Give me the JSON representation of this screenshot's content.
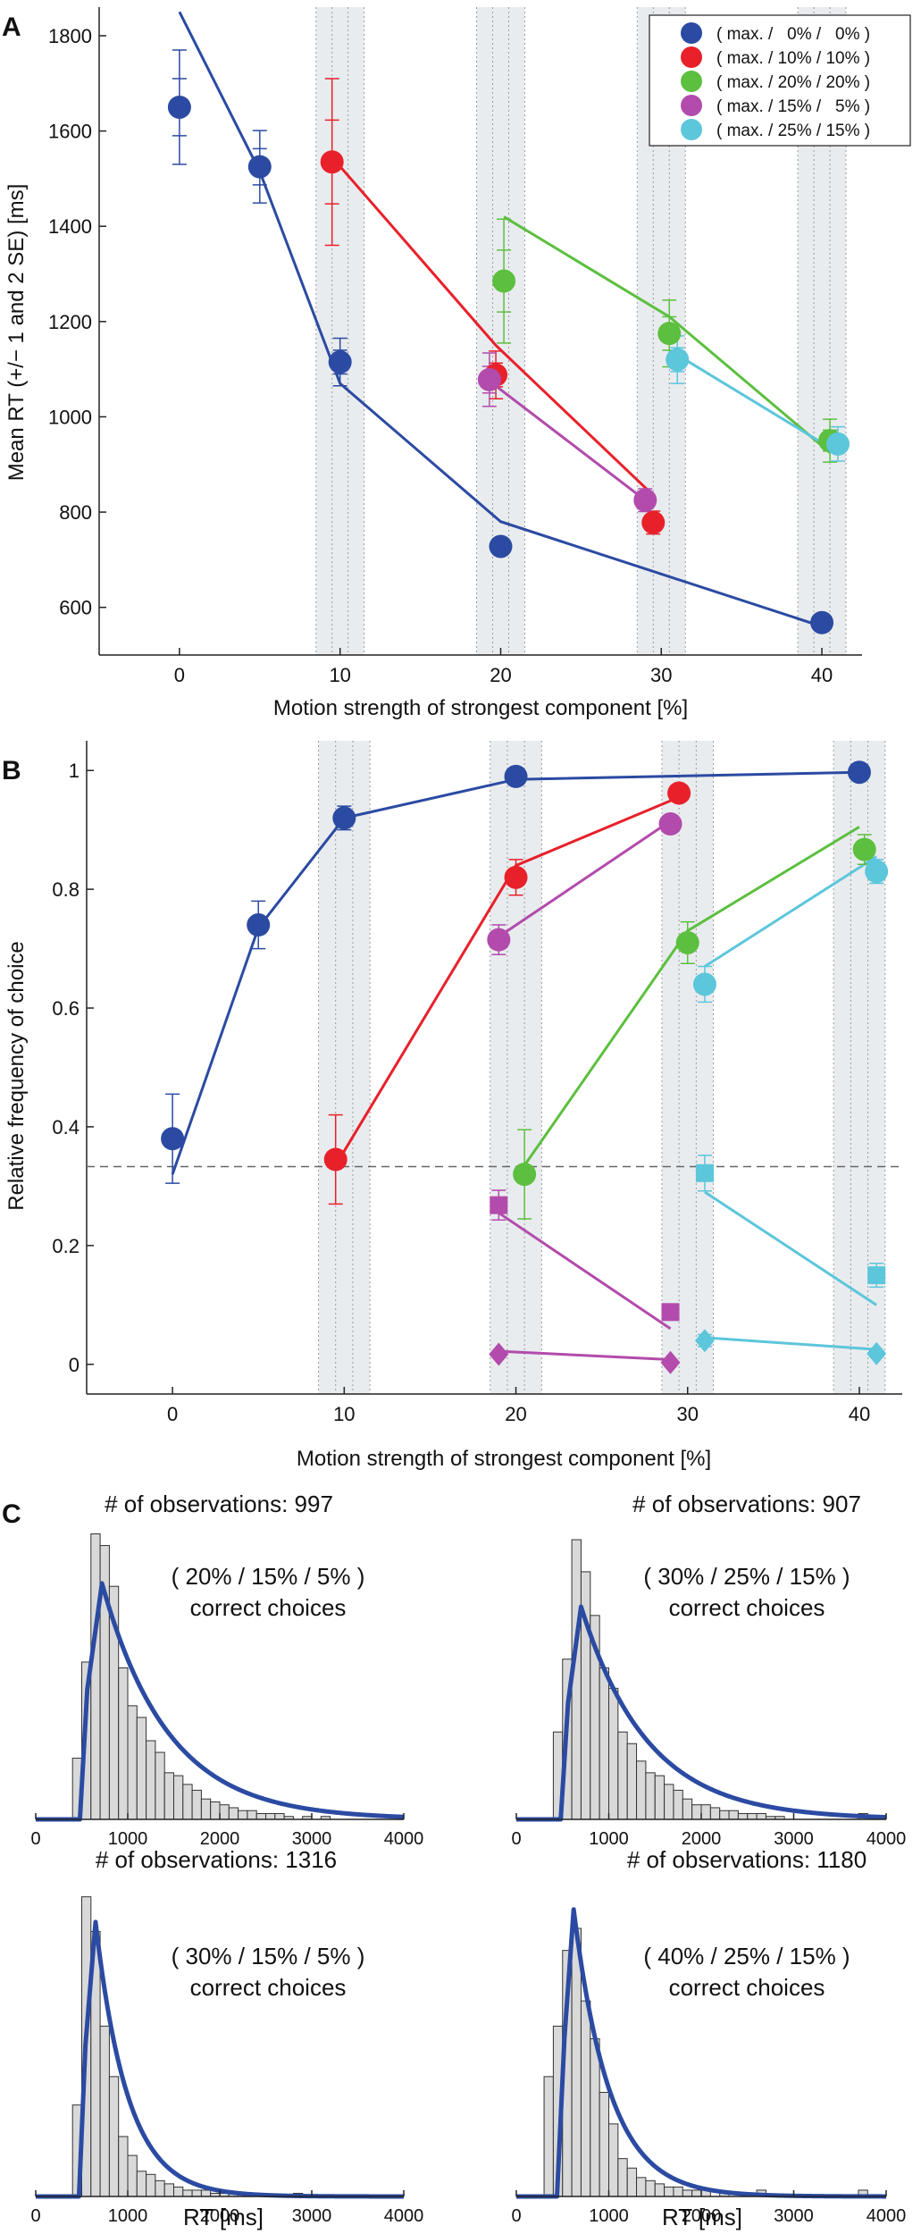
{
  "panel_letters": [
    "A",
    "B",
    "C"
  ],
  "legend_entries": [
    "( max. /   0% /   0% )",
    "( max. / 10% / 10% )",
    "( max. / 20% / 20% )",
    "( max. / 15% /   5% )",
    "( max. / 25% / 15% )"
  ],
  "colors": {
    "blue": "#2b4aa2",
    "red": "#e8202a",
    "green": "#5cbf3f",
    "magenta": "#b24bab",
    "cyan": "#5cc6db",
    "band": "#e9ecef",
    "hist_fill": "#d9d9d9",
    "fit_line": "#2b4aa2"
  },
  "chart_data": [
    {
      "id": "A",
      "type": "scatter",
      "xlabel": "Motion strength of strongest component [%]",
      "ylabel": "Mean RT (+/− 1 and 2 SE) [ms]",
      "xlim": [
        -5,
        42.5
      ],
      "ylim": [
        500,
        1860
      ],
      "xticks": [
        0,
        10,
        20,
        30,
        40
      ],
      "yticks": [
        600,
        800,
        1000,
        1200,
        1400,
        1600,
        1800
      ],
      "shaded_bands": [
        [
          8.5,
          11.5
        ],
        [
          18.5,
          21.5
        ],
        [
          28.5,
          31.5
        ],
        [
          38.5,
          41.5
        ]
      ],
      "legend_position": "top-right",
      "series": [
        {
          "color": "blue",
          "points": [
            {
              "x": 0,
              "y": 1650,
              "se1": 60,
              "se2": 120
            },
            {
              "x": 5,
              "y": 1525,
              "se1": 38,
              "se2": 76
            },
            {
              "x": 10,
              "y": 1115,
              "se1": 25,
              "se2": 50
            },
            {
              "x": 20,
              "y": 728,
              "se1": 8,
              "se2": 16
            },
            {
              "x": 40,
              "y": 568,
              "se1": 6,
              "se2": 12
            }
          ],
          "fit": [
            [
              0,
              1850
            ],
            [
              5,
              1515
            ],
            [
              10,
              1070
            ],
            [
              20,
              780
            ],
            [
              40,
              560
            ]
          ]
        },
        {
          "color": "red",
          "points": [
            {
              "x": 9.5,
              "y": 1535,
              "se1": 88,
              "se2": 175
            },
            {
              "x": 19.7,
              "y": 1088,
              "se1": 25,
              "se2": 50
            },
            {
              "x": 29.5,
              "y": 778,
              "se1": 12,
              "se2": 24
            }
          ],
          "fit": [
            [
              9.5,
              1545
            ],
            [
              19.7,
              1150
            ],
            [
              29.2,
              845
            ]
          ]
        },
        {
          "color": "green",
          "points": [
            {
              "x": 20.2,
              "y": 1285,
              "se1": 65,
              "se2": 130
            },
            {
              "x": 30.5,
              "y": 1175,
              "se1": 35,
              "se2": 70
            },
            {
              "x": 40.5,
              "y": 950,
              "se1": 22,
              "se2": 45
            }
          ],
          "fit": [
            [
              20.2,
              1420
            ],
            [
              30.5,
              1210
            ],
            [
              40.5,
              925
            ]
          ]
        },
        {
          "color": "magenta",
          "points": [
            {
              "x": 19.3,
              "y": 1078,
              "se1": 28,
              "se2": 56
            },
            {
              "x": 29,
              "y": 825,
              "se1": 12,
              "se2": 24
            }
          ],
          "fit": [
            [
              19.3,
              1075
            ],
            [
              29,
              825
            ]
          ]
        },
        {
          "color": "cyan",
          "points": [
            {
              "x": 31,
              "y": 1120,
              "se1": 25,
              "se2": 50
            },
            {
              "x": 41,
              "y": 943,
              "se1": 18,
              "se2": 36
            }
          ],
          "fit": [
            [
              31,
              1130
            ],
            [
              41,
              925
            ]
          ]
        }
      ]
    },
    {
      "id": "B",
      "type": "scatter",
      "xlabel": "Motion strength of strongest component [%]",
      "ylabel": "Relative frequency of choice",
      "xlim": [
        -5,
        42.5
      ],
      "ylim": [
        -0.05,
        1.05
      ],
      "xticks": [
        0,
        10,
        20,
        30,
        40
      ],
      "yticks": [
        0,
        0.2,
        0.4,
        0.6,
        0.8,
        1
      ],
      "shaded_bands": [
        [
          8.5,
          11.5
        ],
        [
          18.5,
          21.5
        ],
        [
          28.5,
          31.5
        ],
        [
          38.5,
          41.5
        ]
      ],
      "chance_level": 0.333,
      "series": [
        {
          "color": "blue",
          "marker": "circle",
          "points": [
            {
              "x": 0,
              "y": 0.38,
              "err": 0.075
            },
            {
              "x": 5,
              "y": 0.74,
              "err": 0.04
            },
            {
              "x": 10,
              "y": 0.92,
              "err": 0.02
            },
            {
              "x": 20,
              "y": 0.99,
              "err": 0.006
            },
            {
              "x": 40,
              "y": 0.997,
              "err": 0.004
            }
          ],
          "fit": [
            [
              0,
              0.32
            ],
            [
              5,
              0.735
            ],
            [
              10,
              0.92
            ],
            [
              20,
              0.985
            ],
            [
              40,
              0.997
            ]
          ]
        },
        {
          "color": "red",
          "marker": "circle",
          "points": [
            {
              "x": 9.5,
              "y": 0.345,
              "err": 0.075
            },
            {
              "x": 20,
              "y": 0.82,
              "err": 0.03
            },
            {
              "x": 29.5,
              "y": 0.962,
              "err": 0.01
            }
          ],
          "fit": [
            [
              9.5,
              0.335
            ],
            [
              20,
              0.84
            ],
            [
              29.5,
              0.955
            ]
          ]
        },
        {
          "color": "green",
          "marker": "circle",
          "points": [
            {
              "x": 20.5,
              "y": 0.32,
              "err": 0.075
            },
            {
              "x": 30,
              "y": 0.71,
              "err": 0.035
            },
            {
              "x": 40.3,
              "y": 0.867,
              "err": 0.025
            }
          ],
          "fit": [
            [
              20.5,
              0.335
            ],
            [
              30,
              0.73
            ],
            [
              40,
              0.905
            ]
          ]
        },
        {
          "color": "magenta",
          "marker": "circle",
          "points": [
            {
              "x": 19,
              "y": 0.715,
              "err": 0.025
            },
            {
              "x": 29,
              "y": 0.91,
              "err": 0.012
            }
          ],
          "fit": [
            [
              19,
              0.72
            ],
            [
              29,
              0.915
            ]
          ]
        },
        {
          "color": "magenta",
          "marker": "square",
          "points": [
            {
              "x": 19,
              "y": 0.268,
              "err": 0.025
            },
            {
              "x": 29,
              "y": 0.088,
              "err": 0.012
            }
          ],
          "fit": [
            [
              19,
              0.255
            ],
            [
              29,
              0.06
            ]
          ]
        },
        {
          "color": "magenta",
          "marker": "diamond",
          "points": [
            {
              "x": 19,
              "y": 0.017,
              "err": 0.003
            },
            {
              "x": 29,
              "y": 0.003,
              "err": 0.002
            }
          ],
          "fit": [
            [
              19,
              0.022
            ],
            [
              29,
              0.008
            ]
          ]
        },
        {
          "color": "cyan",
          "marker": "circle",
          "points": [
            {
              "x": 31,
              "y": 0.64,
              "err": 0.03
            },
            {
              "x": 41,
              "y": 0.83,
              "err": 0.02
            }
          ],
          "fit": [
            [
              31,
              0.67
            ],
            [
              41,
              0.855
            ]
          ]
        },
        {
          "color": "cyan",
          "marker": "square",
          "points": [
            {
              "x": 31,
              "y": 0.322,
              "err": 0.03
            },
            {
              "x": 41,
              "y": 0.15,
              "err": 0.02
            }
          ],
          "fit": [
            [
              31,
              0.29
            ],
            [
              41,
              0.1
            ]
          ]
        },
        {
          "color": "cyan",
          "marker": "diamond",
          "points": [
            {
              "x": 31,
              "y": 0.04,
              "err": 0.01
            },
            {
              "x": 41,
              "y": 0.018,
              "err": 0.005
            }
          ],
          "fit": [
            [
              31,
              0.045
            ],
            [
              41,
              0.025
            ]
          ]
        }
      ]
    },
    {
      "id": "C",
      "type": "histogram",
      "xlabel": "RT [ms]",
      "xlim": [
        0,
        4000
      ],
      "xticks": [
        0,
        1000,
        2000,
        3000,
        4000
      ],
      "bin_width": 100,
      "subplots": [
        {
          "title": "# of observations: 997",
          "label_line1": "( 20% / 15% / 5% )",
          "label_line2": "correct choices",
          "show_xlabel": false,
          "bins": [
            {
              "x0": 400,
              "h": 0.21
            },
            {
              "x0": 500,
              "h": 0.54
            },
            {
              "x0": 600,
              "h": 0.98
            },
            {
              "x0": 700,
              "h": 0.94
            },
            {
              "x0": 800,
              "h": 0.8
            },
            {
              "x0": 900,
              "h": 0.52
            },
            {
              "x0": 1000,
              "h": 0.39
            },
            {
              "x0": 1100,
              "h": 0.35
            },
            {
              "x0": 1200,
              "h": 0.27
            },
            {
              "x0": 1300,
              "h": 0.23
            },
            {
              "x0": 1400,
              "h": 0.16
            },
            {
              "x0": 1500,
              "h": 0.15
            },
            {
              "x0": 1600,
              "h": 0.12
            },
            {
              "x0": 1700,
              "h": 0.1
            },
            {
              "x0": 1800,
              "h": 0.07
            },
            {
              "x0": 1900,
              "h": 0.06
            },
            {
              "x0": 2000,
              "h": 0.05
            },
            {
              "x0": 2100,
              "h": 0.04
            },
            {
              "x0": 2200,
              "h": 0.03
            },
            {
              "x0": 2300,
              "h": 0.03
            },
            {
              "x0": 2400,
              "h": 0.02
            },
            {
              "x0": 2500,
              "h": 0.02
            },
            {
              "x0": 2600,
              "h": 0.02
            },
            {
              "x0": 2700,
              "h": 0.01
            },
            {
              "x0": 2900,
              "h": 0.01
            },
            {
              "x0": 3100,
              "h": 0.01
            }
          ],
          "fit": {
            "onset": 480,
            "rise_end": 560,
            "peak": 720,
            "peak_h": 0.81,
            "tail": 720
          }
        },
        {
          "title": "# of observations: 907",
          "label_line1": "( 30% / 25% / 15% )",
          "label_line2": "correct choices",
          "show_xlabel": false,
          "bins": [
            {
              "x0": 400,
              "h": 0.3
            },
            {
              "x0": 500,
              "h": 0.55
            },
            {
              "x0": 600,
              "h": 0.96
            },
            {
              "x0": 700,
              "h": 0.85
            },
            {
              "x0": 800,
              "h": 0.7
            },
            {
              "x0": 900,
              "h": 0.52
            },
            {
              "x0": 1000,
              "h": 0.45
            },
            {
              "x0": 1100,
              "h": 0.3
            },
            {
              "x0": 1200,
              "h": 0.26
            },
            {
              "x0": 1300,
              "h": 0.2
            },
            {
              "x0": 1400,
              "h": 0.16
            },
            {
              "x0": 1500,
              "h": 0.15
            },
            {
              "x0": 1600,
              "h": 0.12
            },
            {
              "x0": 1700,
              "h": 0.1
            },
            {
              "x0": 1800,
              "h": 0.07
            },
            {
              "x0": 1900,
              "h": 0.05
            },
            {
              "x0": 2000,
              "h": 0.05
            },
            {
              "x0": 2100,
              "h": 0.04
            },
            {
              "x0": 2200,
              "h": 0.03
            },
            {
              "x0": 2300,
              "h": 0.03
            },
            {
              "x0": 2400,
              "h": 0.02
            },
            {
              "x0": 2500,
              "h": 0.02
            },
            {
              "x0": 2600,
              "h": 0.02
            },
            {
              "x0": 2700,
              "h": 0.01
            },
            {
              "x0": 2800,
              "h": 0.01
            },
            {
              "x0": 3700,
              "h": 0.02
            }
          ],
          "fit": {
            "onset": 480,
            "rise_end": 560,
            "peak": 700,
            "peak_h": 0.73,
            "tail": 720
          }
        },
        {
          "title": "# of observations: 1316",
          "label_line1": "( 30% / 15% / 5% )",
          "label_line2": "correct choices",
          "show_xlabel": true,
          "bins": [
            {
              "x0": 400,
              "h": 0.29
            },
            {
              "x0": 500,
              "h": 0.95
            },
            {
              "x0": 600,
              "h": 0.84
            },
            {
              "x0": 700,
              "h": 0.54
            },
            {
              "x0": 800,
              "h": 0.38
            },
            {
              "x0": 900,
              "h": 0.19
            },
            {
              "x0": 1000,
              "h": 0.13
            },
            {
              "x0": 1100,
              "h": 0.08
            },
            {
              "x0": 1200,
              "h": 0.07
            },
            {
              "x0": 1300,
              "h": 0.05
            },
            {
              "x0": 1400,
              "h": 0.04
            },
            {
              "x0": 1500,
              "h": 0.03
            },
            {
              "x0": 1600,
              "h": 0.02
            },
            {
              "x0": 1700,
              "h": 0.02
            },
            {
              "x0": 1800,
              "h": 0.02
            },
            {
              "x0": 1900,
              "h": 0.01
            },
            {
              "x0": 2000,
              "h": 0.01
            },
            {
              "x0": 2100,
              "h": 0.01
            },
            {
              "x0": 2800,
              "h": 0.01
            }
          ],
          "fit": {
            "onset": 470,
            "rise_end": 540,
            "peak": 650,
            "peak_h": 0.87,
            "tail": 350
          }
        },
        {
          "title": "# of observations: 1180",
          "label_line1": "( 40% / 25% / 15% )",
          "label_line2": "correct choices",
          "show_xlabel": true,
          "bins": [
            {
              "x0": 300,
              "h": 0.38
            },
            {
              "x0": 400,
              "h": 0.54
            },
            {
              "x0": 500,
              "h": 0.78
            },
            {
              "x0": 600,
              "h": 0.85
            },
            {
              "x0": 700,
              "h": 0.62
            },
            {
              "x0": 800,
              "h": 0.5
            },
            {
              "x0": 900,
              "h": 0.33
            },
            {
              "x0": 1000,
              "h": 0.23
            },
            {
              "x0": 1100,
              "h": 0.12
            },
            {
              "x0": 1200,
              "h": 0.09
            },
            {
              "x0": 1300,
              "h": 0.06
            },
            {
              "x0": 1400,
              "h": 0.05
            },
            {
              "x0": 1500,
              "h": 0.04
            },
            {
              "x0": 1600,
              "h": 0.03
            },
            {
              "x0": 1700,
              "h": 0.03
            },
            {
              "x0": 1800,
              "h": 0.02
            },
            {
              "x0": 1900,
              "h": 0.02
            },
            {
              "x0": 2000,
              "h": 0.02
            },
            {
              "x0": 2200,
              "h": 0.01
            },
            {
              "x0": 2600,
              "h": 0.02
            },
            {
              "x0": 3700,
              "h": 0.02
            }
          ],
          "fit": {
            "onset": 440,
            "rise_end": 520,
            "peak": 620,
            "peak_h": 0.91,
            "tail": 390
          }
        }
      ]
    }
  ]
}
